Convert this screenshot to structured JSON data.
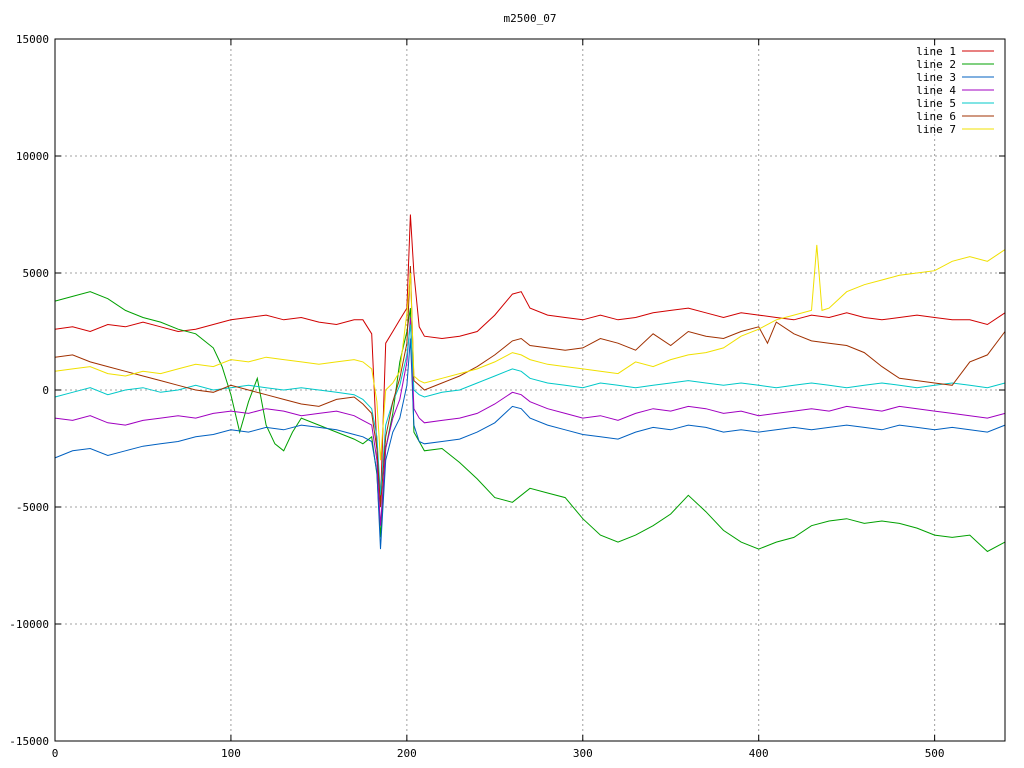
{
  "chart_data": {
    "type": "line",
    "title": "m2500_07",
    "xlabel": "",
    "ylabel": "",
    "xlim": [
      0,
      540
    ],
    "ylim": [
      -15000,
      15000
    ],
    "xticks": [
      0,
      100,
      200,
      300,
      400,
      500
    ],
    "yticks": [
      -15000,
      -10000,
      -5000,
      0,
      5000,
      10000,
      15000
    ],
    "grid": true,
    "legend_position": "top-right",
    "series": [
      {
        "name": "line 1",
        "color": "#d00000",
        "x": [
          0,
          10,
          20,
          30,
          40,
          50,
          60,
          70,
          80,
          90,
          100,
          110,
          120,
          130,
          140,
          150,
          160,
          170,
          175,
          180,
          183,
          185,
          188,
          192,
          196,
          200,
          202,
          204,
          207,
          210,
          220,
          230,
          240,
          250,
          260,
          265,
          270,
          280,
          290,
          300,
          310,
          320,
          330,
          340,
          350,
          360,
          370,
          380,
          390,
          400,
          410,
          420,
          430,
          440,
          450,
          460,
          470,
          480,
          490,
          500,
          510,
          520,
          530,
          540
        ],
        "y": [
          2600,
          2700,
          2500,
          2800,
          2700,
          2900,
          2700,
          2500,
          2600,
          2800,
          3000,
          3100,
          3200,
          3000,
          3100,
          2900,
          2800,
          3000,
          3000,
          2400,
          -2500,
          -4800,
          2000,
          2500,
          3000,
          3500,
          7500,
          5000,
          2700,
          2300,
          2200,
          2300,
          2500,
          3200,
          4100,
          4200,
          3500,
          3200,
          3100,
          3000,
          3200,
          3000,
          3100,
          3300,
          3400,
          3500,
          3300,
          3100,
          3300,
          3200,
          3100,
          3000,
          3200,
          3100,
          3300,
          3100,
          3000,
          3100,
          3200,
          3100,
          3000,
          3000,
          2800,
          3300
        ]
      },
      {
        "name": "line 2",
        "color": "#00a000",
        "x": [
          0,
          10,
          20,
          30,
          40,
          50,
          60,
          70,
          80,
          90,
          95,
          100,
          105,
          110,
          115,
          120,
          125,
          130,
          135,
          140,
          150,
          160,
          170,
          175,
          180,
          183,
          185,
          188,
          192,
          196,
          200,
          202,
          204,
          207,
          210,
          220,
          230,
          240,
          250,
          260,
          270,
          280,
          290,
          300,
          310,
          320,
          330,
          340,
          350,
          360,
          370,
          380,
          390,
          400,
          410,
          420,
          430,
          440,
          450,
          460,
          470,
          480,
          490,
          500,
          510,
          520,
          530,
          540
        ],
        "y": [
          3800,
          4000,
          4200,
          3900,
          3400,
          3100,
          2900,
          2600,
          2400,
          1800,
          1000,
          -200,
          -1800,
          -500,
          500,
          -1500,
          -2300,
          -2600,
          -1800,
          -1200,
          -1500,
          -1800,
          -2100,
          -2300,
          -2000,
          -3600,
          -6300,
          -2500,
          -1000,
          1200,
          2500,
          3500,
          -1800,
          -2200,
          -2600,
          -2500,
          -3100,
          -3800,
          -4600,
          -4800,
          -4200,
          -4400,
          -4600,
          -5500,
          -6200,
          -6500,
          -6200,
          -5800,
          -5300,
          -4500,
          -5200,
          -6000,
          -6500,
          -6800,
          -6500,
          -6300,
          -5800,
          -5600,
          -5500,
          -5700,
          -5600,
          -5700,
          -5900,
          -6200,
          -6300,
          -6200,
          -6900,
          -6500
        ]
      },
      {
        "name": "line 3",
        "color": "#0060c0",
        "x": [
          0,
          10,
          20,
          30,
          40,
          50,
          60,
          70,
          80,
          90,
          100,
          110,
          120,
          130,
          140,
          150,
          160,
          170,
          175,
          180,
          183,
          185,
          188,
          192,
          196,
          200,
          202,
          204,
          207,
          210,
          220,
          230,
          240,
          250,
          260,
          265,
          270,
          280,
          290,
          300,
          310,
          320,
          330,
          340,
          350,
          360,
          370,
          380,
          390,
          400,
          410,
          420,
          430,
          440,
          450,
          460,
          470,
          480,
          490,
          500,
          510,
          520,
          530,
          540
        ],
        "y": [
          -2900,
          -2600,
          -2500,
          -2800,
          -2600,
          -2400,
          -2300,
          -2200,
          -2000,
          -1900,
          -1700,
          -1800,
          -1600,
          -1700,
          -1500,
          -1600,
          -1700,
          -1900,
          -2000,
          -2200,
          -3500,
          -6800,
          -3000,
          -1800,
          -1200,
          200,
          2200,
          -1500,
          -2200,
          -2300,
          -2200,
          -2100,
          -1800,
          -1400,
          -700,
          -800,
          -1200,
          -1500,
          -1700,
          -1900,
          -2000,
          -2100,
          -1800,
          -1600,
          -1700,
          -1500,
          -1600,
          -1800,
          -1700,
          -1800,
          -1700,
          -1600,
          -1700,
          -1600,
          -1500,
          -1600,
          -1700,
          -1500,
          -1600,
          -1700,
          -1600,
          -1700,
          -1800,
          -1500
        ]
      },
      {
        "name": "line 4",
        "color": "#a000c0",
        "x": [
          0,
          10,
          20,
          30,
          40,
          50,
          60,
          70,
          80,
          90,
          100,
          110,
          120,
          130,
          140,
          150,
          160,
          170,
          175,
          180,
          183,
          185,
          188,
          192,
          196,
          200,
          202,
          204,
          207,
          210,
          220,
          230,
          240,
          250,
          260,
          265,
          270,
          280,
          290,
          300,
          310,
          320,
          330,
          340,
          350,
          360,
          370,
          380,
          390,
          400,
          410,
          420,
          430,
          440,
          450,
          460,
          470,
          480,
          490,
          500,
          510,
          520,
          530,
          540
        ],
        "y": [
          -1200,
          -1300,
          -1100,
          -1400,
          -1500,
          -1300,
          -1200,
          -1100,
          -1200,
          -1000,
          -900,
          -1000,
          -800,
          -900,
          -1100,
          -1000,
          -900,
          -1100,
          -1300,
          -1500,
          -3000,
          -5800,
          -2500,
          -1200,
          -400,
          1200,
          3100,
          -800,
          -1200,
          -1400,
          -1300,
          -1200,
          -1000,
          -600,
          -100,
          -200,
          -500,
          -800,
          -1000,
          -1200,
          -1100,
          -1300,
          -1000,
          -800,
          -900,
          -700,
          -800,
          -1000,
          -900,
          -1100,
          -1000,
          -900,
          -800,
          -900,
          -700,
          -800,
          -900,
          -700,
          -800,
          -900,
          -1000,
          -1100,
          -1200,
          -1000
        ]
      },
      {
        "name": "line 5",
        "color": "#00c8c8",
        "x": [
          0,
          10,
          20,
          30,
          40,
          50,
          60,
          70,
          80,
          90,
          100,
          110,
          120,
          130,
          140,
          150,
          160,
          170,
          175,
          180,
          183,
          185,
          188,
          192,
          196,
          200,
          202,
          204,
          207,
          210,
          220,
          230,
          240,
          250,
          260,
          265,
          270,
          280,
          290,
          300,
          310,
          320,
          330,
          340,
          350,
          360,
          370,
          380,
          390,
          400,
          410,
          420,
          430,
          440,
          450,
          460,
          470,
          480,
          490,
          500,
          510,
          520,
          530,
          540
        ],
        "y": [
          -300,
          -100,
          100,
          -200,
          0,
          100,
          -100,
          0,
          200,
          0,
          100,
          200,
          100,
          0,
          100,
          0,
          -100,
          -200,
          -400,
          -800,
          -2000,
          -4500,
          -1500,
          -500,
          200,
          1500,
          2800,
          0,
          -200,
          -300,
          -100,
          0,
          300,
          600,
          900,
          800,
          500,
          300,
          200,
          100,
          300,
          200,
          100,
          200,
          300,
          400,
          300,
          200,
          300,
          200,
          100,
          200,
          300,
          200,
          100,
          200,
          300,
          200,
          100,
          200,
          300,
          200,
          100,
          300
        ]
      },
      {
        "name": "line 6",
        "color": "#a03000",
        "x": [
          0,
          10,
          20,
          30,
          40,
          50,
          60,
          70,
          80,
          90,
          100,
          110,
          120,
          130,
          140,
          150,
          160,
          170,
          175,
          180,
          183,
          185,
          188,
          192,
          196,
          200,
          202,
          204,
          207,
          210,
          220,
          230,
          240,
          250,
          260,
          265,
          270,
          280,
          290,
          300,
          310,
          320,
          330,
          340,
          350,
          360,
          370,
          380,
          390,
          400,
          405,
          410,
          420,
          430,
          440,
          450,
          460,
          470,
          480,
          490,
          500,
          510,
          520,
          530,
          540
        ],
        "y": [
          1400,
          1500,
          1200,
          1000,
          800,
          600,
          400,
          200,
          0,
          -100,
          200,
          0,
          -200,
          -400,
          -600,
          -700,
          -400,
          -300,
          -600,
          -1000,
          -2500,
          -5000,
          -2000,
          -500,
          500,
          2000,
          5300,
          400,
          200,
          0,
          300,
          600,
          1000,
          1500,
          2100,
          2200,
          1900,
          1800,
          1700,
          1800,
          2200,
          2000,
          1700,
          2400,
          1900,
          2500,
          2300,
          2200,
          2500,
          2700,
          2000,
          2900,
          2400,
          2100,
          2000,
          1900,
          1600,
          1000,
          500,
          400,
          300,
          200,
          1200,
          1500,
          2500
        ]
      },
      {
        "name": "line 7",
        "color": "#f0e000",
        "x": [
          0,
          10,
          20,
          30,
          40,
          50,
          60,
          70,
          80,
          90,
          100,
          110,
          120,
          130,
          140,
          150,
          160,
          170,
          175,
          180,
          183,
          185,
          188,
          192,
          196,
          200,
          202,
          204,
          207,
          210,
          220,
          230,
          240,
          250,
          260,
          265,
          270,
          280,
          290,
          300,
          310,
          320,
          330,
          340,
          350,
          360,
          370,
          380,
          390,
          400,
          410,
          420,
          430,
          433,
          436,
          440,
          450,
          460,
          470,
          480,
          490,
          500,
          510,
          520,
          530,
          540
        ],
        "y": [
          800,
          900,
          1000,
          700,
          600,
          800,
          700,
          900,
          1100,
          1000,
          1300,
          1200,
          1400,
          1300,
          1200,
          1100,
          1200,
          1300,
          1200,
          900,
          -500,
          -3000,
          0,
          300,
          800,
          3300,
          5000,
          600,
          400,
          300,
          500,
          700,
          900,
          1200,
          1600,
          1500,
          1300,
          1100,
          1000,
          900,
          800,
          700,
          1200,
          1000,
          1300,
          1500,
          1600,
          1800,
          2300,
          2600,
          3000,
          3200,
          3400,
          6200,
          3400,
          3500,
          4200,
          4500,
          4700,
          4900,
          5000,
          5100,
          5500,
          5700,
          5500,
          6000
        ]
      }
    ]
  }
}
